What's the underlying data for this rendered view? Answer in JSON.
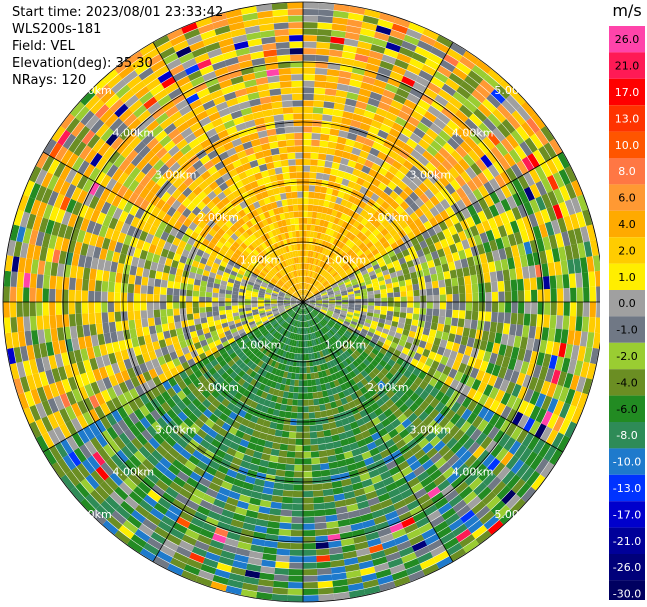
{
  "header": {
    "start_time": "Start time: 2023/08/01 23:33:42",
    "instrument": "WLS200s-181",
    "field": "Field: VEL",
    "elevation": "Elevation(deg): 35.30",
    "nrays": "NRays: 120"
  },
  "colorbar": {
    "unit": "m/s",
    "ticks": [
      "26.0",
      "21.0",
      "17.0",
      "13.0",
      "10.0",
      "8.0",
      "6.0",
      "4.0",
      "2.0",
      "1.0",
      "0.0",
      "-1.0",
      "-2.0",
      "-4.0",
      "-6.0",
      "-8.0",
      "-10.0",
      "-13.0",
      "-17.0",
      "-21.0",
      "-26.0",
      "-30.0"
    ],
    "colors": [
      "#ff44aa",
      "#ff1a55",
      "#ff0000",
      "#ff3300",
      "#ff5500",
      "#ff7744",
      "#ff9933",
      "#ffaa00",
      "#ffcc00",
      "#ffee00",
      "#a0a0a0",
      "#707885",
      "#9acd32",
      "#6b8e23",
      "#228b22",
      "#2e8b57",
      "#1e7acc",
      "#0033ff",
      "#0000cc",
      "#000099",
      "#00007a",
      "#000060"
    ]
  },
  "chart_data": {
    "type": "ppi",
    "field": "VEL",
    "nrays": 120,
    "range_ring_labels": [
      "1.00km",
      "2.00km",
      "3.00km",
      "4.00km",
      "5.00km"
    ],
    "range_rings_km": [
      1,
      2,
      3,
      4,
      5
    ],
    "max_range_km": 5,
    "velocity_pattern_by_sector": [
      {
        "azimuth_from": 300,
        "azimuth_to": 60,
        "near_ms": 4.0,
        "far_ms": 2.0
      },
      {
        "azimuth_from": 60,
        "azimuth_to": 120,
        "near_ms": 0.0,
        "far_ms": -1.0
      },
      {
        "azimuth_from": 120,
        "azimuth_to": 240,
        "near_ms": -6.0,
        "far_ms": -4.0
      },
      {
        "azimuth_from": 240,
        "azimuth_to": 300,
        "near_ms": 0.0,
        "far_ms": 1.0
      }
    ]
  }
}
